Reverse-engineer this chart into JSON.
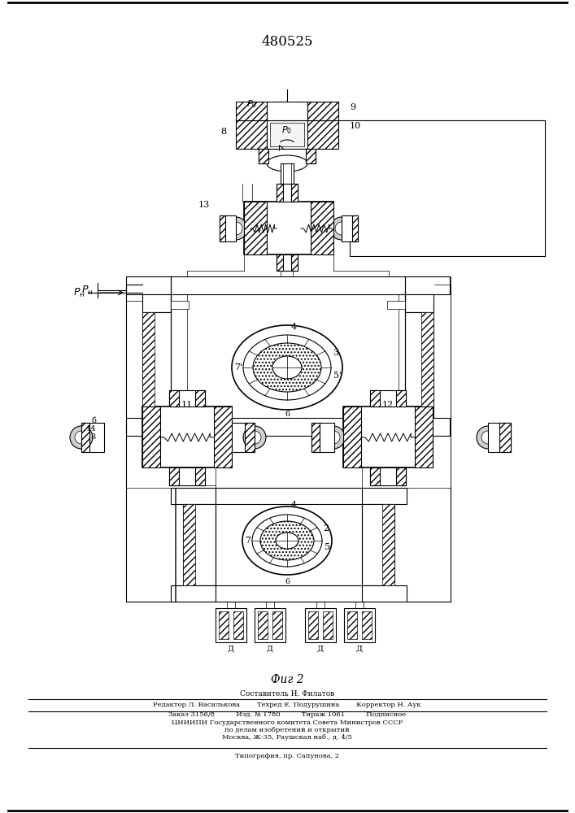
{
  "title": "480525",
  "fig_label": "Фиг 2",
  "background_color": "#ffffff",
  "line_color": "#000000",
  "footer_lines": [
    "Составитель Н. Филатов",
    "Редактор Л. Василькова        Техред Е. Подурушина        Корректор Н. Аук",
    "Заказ 3156/8          Изд. № 1780          Тираж 1061          Подписное",
    "ЦНИИПИ Государственного комитета Совета Министров СССР",
    "по делам изобретений и открытий",
    "Москва, Ж-35, Раушская наб., д. 4/5",
    "Типография, пр. Сапунова, 2"
  ]
}
